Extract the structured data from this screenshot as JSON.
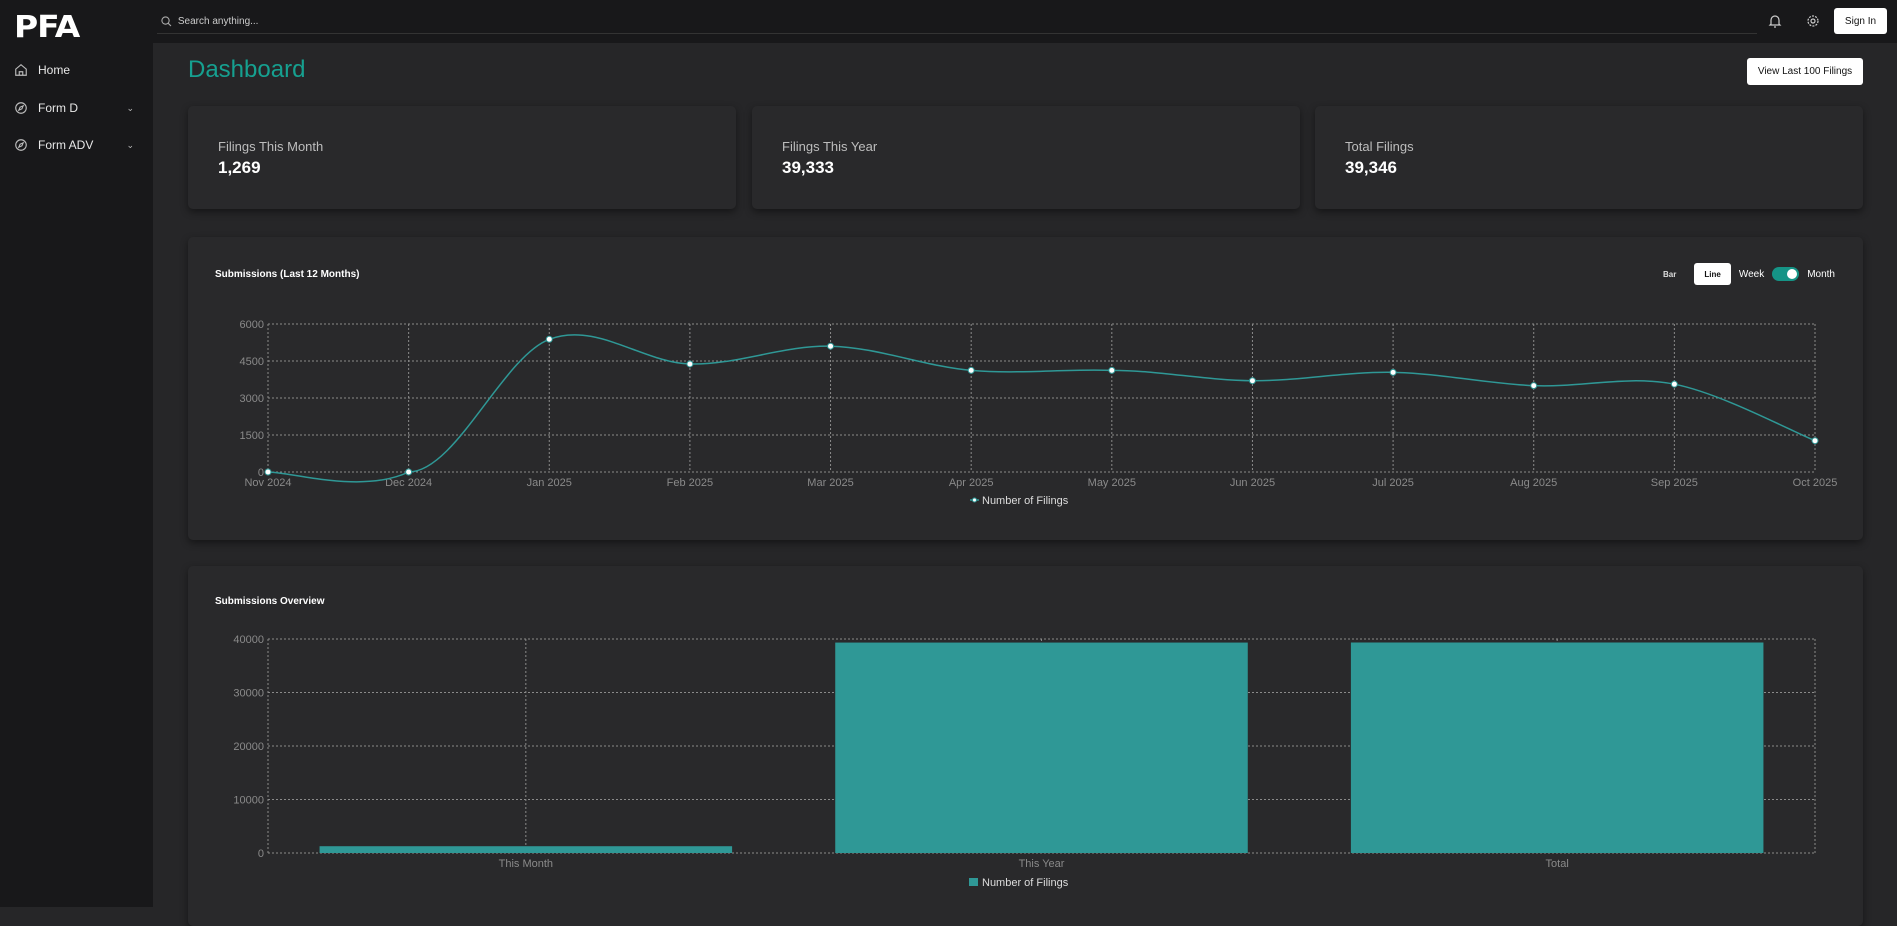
{
  "app": {
    "logo": "PFA"
  },
  "sidebar": {
    "items": [
      {
        "label": "Home",
        "icon": "home-icon"
      },
      {
        "label": "Form D",
        "icon": "compass-icon",
        "expandable": true
      },
      {
        "label": "Form ADV",
        "icon": "compass-icon",
        "expandable": true
      }
    ]
  },
  "topbar": {
    "search_placeholder": "Search anything...",
    "sign_in": "Sign In"
  },
  "page": {
    "title": "Dashboard",
    "view_button": "View Last 100 Filings"
  },
  "stats": [
    {
      "label": "Filings This Month",
      "value": "1,269"
    },
    {
      "label": "Filings This Year",
      "value": "39,333"
    },
    {
      "label": "Total Filings",
      "value": "39,346"
    }
  ],
  "line_controls": {
    "bar": "Bar",
    "line": "Line",
    "week": "Week",
    "month": "Month",
    "selected_type": "Line",
    "period_toggle": "Month"
  },
  "colors": {
    "accent": "#16a090",
    "series": "#2f9896"
  },
  "chart_data": [
    {
      "type": "line",
      "title": "Submissions (Last 12 Months)",
      "categories": [
        "Nov 2024",
        "Dec 2024",
        "Jan 2025",
        "Feb 2025",
        "Mar 2025",
        "Apr 2025",
        "May 2025",
        "Jun 2025",
        "Jul 2025",
        "Aug 2025",
        "Sep 2025",
        "Oct 2025"
      ],
      "series": [
        {
          "name": "Number of Filings",
          "values": [
            0,
            0,
            5380,
            4380,
            5100,
            4120,
            4120,
            3700,
            4040,
            3500,
            3560,
            1269
          ]
        }
      ],
      "yticks": [
        "0",
        "1500",
        "3000",
        "4500",
        "6000"
      ],
      "ylim": [
        0,
        6000
      ],
      "grid": true,
      "legend": "bottom"
    },
    {
      "type": "bar",
      "title": "Submissions Overview",
      "categories": [
        "This Month",
        "This Year",
        "Total"
      ],
      "series": [
        {
          "name": "Number of Filings",
          "values": [
            1269,
            39333,
            39346
          ]
        }
      ],
      "yticks": [
        "0",
        "10000",
        "20000",
        "30000",
        "40000"
      ],
      "ylim": [
        0,
        40000
      ],
      "grid": true,
      "legend": "bottom"
    }
  ]
}
